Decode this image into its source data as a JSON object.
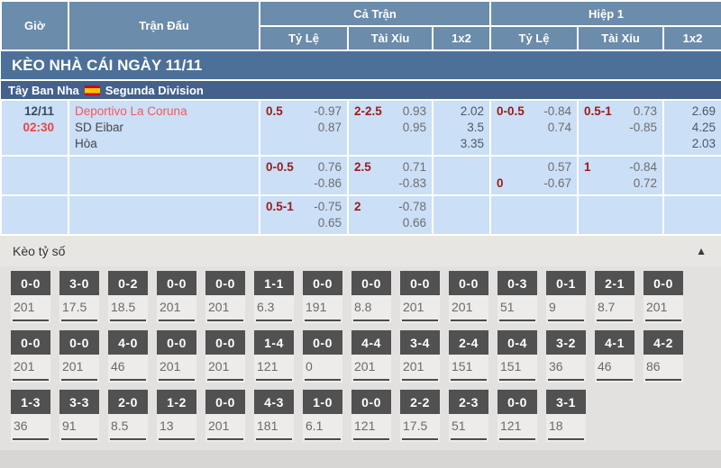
{
  "table_header": {
    "time": "Giờ",
    "match": "Trận Đấu",
    "full_match": "Cả Trận",
    "first_half": "Hiệp 1",
    "handicap": "Tỷ Lệ",
    "over_under": "Tài Xỉu",
    "one_x_two": "1x2"
  },
  "section_title": "KÈO NHÀ CÁI NGÀY 11/11",
  "league_bar": {
    "country": "Tây Ban Nha",
    "league": "Segunda Division",
    "flag": "spain-flag"
  },
  "match": {
    "date": "12/11",
    "time": "02:30",
    "home": "Deportivo La Coruna",
    "away": "SD Eibar",
    "draw": "Hòa"
  },
  "odds_rows": [
    {
      "ft_hdp": [
        {
          "label": "0.5",
          "value": "-0.97"
        },
        {
          "label": "",
          "value": "0.87"
        }
      ],
      "ft_ou": [
        {
          "label": "2-2.5",
          "value": "0.93"
        },
        {
          "label": "",
          "value": "0.95"
        }
      ],
      "ft_1x2": [
        "2.02",
        "3.5",
        "3.35"
      ],
      "h1_hdp": [
        {
          "label": "0-0.5",
          "value": "-0.84"
        },
        {
          "label": "",
          "value": "0.74"
        }
      ],
      "h1_ou": [
        {
          "label": "0.5-1",
          "value": "0.73"
        },
        {
          "label": "",
          "value": "-0.85"
        }
      ],
      "h1_1x2": [
        "2.69",
        "4.25",
        "2.03"
      ]
    },
    {
      "ft_hdp": [
        {
          "label": "0-0.5",
          "value": "0.76"
        },
        {
          "label": "",
          "value": "-0.86"
        }
      ],
      "ft_ou": [
        {
          "label": "2.5",
          "value": "0.71"
        },
        {
          "label": "",
          "value": "-0.83"
        }
      ],
      "ft_1x2": [],
      "h1_hdp": [
        {
          "label": "",
          "value": "0.57"
        },
        {
          "label": "0",
          "value": "-0.67"
        }
      ],
      "h1_ou": [
        {
          "label": "1",
          "value": "-0.84"
        },
        {
          "label": "",
          "value": "0.72"
        }
      ],
      "h1_1x2": []
    },
    {
      "ft_hdp": [
        {
          "label": "0.5-1",
          "value": "-0.75"
        },
        {
          "label": "",
          "value": "0.65"
        }
      ],
      "ft_ou": [
        {
          "label": "2",
          "value": "-0.78"
        },
        {
          "label": "",
          "value": "0.66"
        }
      ],
      "ft_1x2": [],
      "h1_hdp": [],
      "h1_ou": [],
      "h1_1x2": []
    }
  ],
  "score_section": {
    "title": "Kèo tỷ số",
    "collapse_icon": "▲",
    "rows": [
      [
        {
          "s": "0-0",
          "v": "201"
        },
        {
          "s": "3-0",
          "v": "17.5"
        },
        {
          "s": "0-2",
          "v": "18.5"
        },
        {
          "s": "0-0",
          "v": "201"
        },
        {
          "s": "0-0",
          "v": "201"
        },
        {
          "s": "1-1",
          "v": "6.3"
        },
        {
          "s": "0-0",
          "v": "191"
        },
        {
          "s": "0-0",
          "v": "8.8"
        },
        {
          "s": "0-0",
          "v": "201"
        },
        {
          "s": "0-0",
          "v": "201"
        },
        {
          "s": "0-3",
          "v": "51"
        },
        {
          "s": "0-1",
          "v": "9"
        },
        {
          "s": "2-1",
          "v": "8.7"
        },
        {
          "s": "0-0",
          "v": "201"
        }
      ],
      [
        {
          "s": "0-0",
          "v": "201"
        },
        {
          "s": "0-0",
          "v": "201"
        },
        {
          "s": "4-0",
          "v": "46"
        },
        {
          "s": "0-0",
          "v": "201"
        },
        {
          "s": "0-0",
          "v": "201"
        },
        {
          "s": "1-4",
          "v": "121"
        },
        {
          "s": "0-0",
          "v": "0"
        },
        {
          "s": "4-4",
          "v": "201"
        },
        {
          "s": "3-4",
          "v": "201"
        },
        {
          "s": "2-4",
          "v": "151"
        },
        {
          "s": "0-4",
          "v": "151"
        },
        {
          "s": "3-2",
          "v": "36"
        },
        {
          "s": "4-1",
          "v": "46"
        },
        {
          "s": "4-2",
          "v": "86"
        }
      ],
      [
        {
          "s": "1-3",
          "v": "36"
        },
        {
          "s": "3-3",
          "v": "91"
        },
        {
          "s": "2-0",
          "v": "8.5"
        },
        {
          "s": "1-2",
          "v": "13"
        },
        {
          "s": "0-0",
          "v": "201"
        },
        {
          "s": "4-3",
          "v": "181"
        },
        {
          "s": "1-0",
          "v": "6.1"
        },
        {
          "s": "0-0",
          "v": "121"
        },
        {
          "s": "2-2",
          "v": "17.5"
        },
        {
          "s": "2-3",
          "v": "51"
        },
        {
          "s": "0-0",
          "v": "121"
        },
        {
          "s": "3-1",
          "v": "18"
        }
      ]
    ]
  },
  "colors": {
    "header_blue": "#6b8cab",
    "band_blue": "#4d7099",
    "league_blue": "#44618c",
    "row_light_blue": "#cbdff6",
    "handicap_red": "#9c1b1b",
    "team_red": "#f5575e",
    "time_red": "#f04343",
    "score_box_gray": "#515151"
  }
}
